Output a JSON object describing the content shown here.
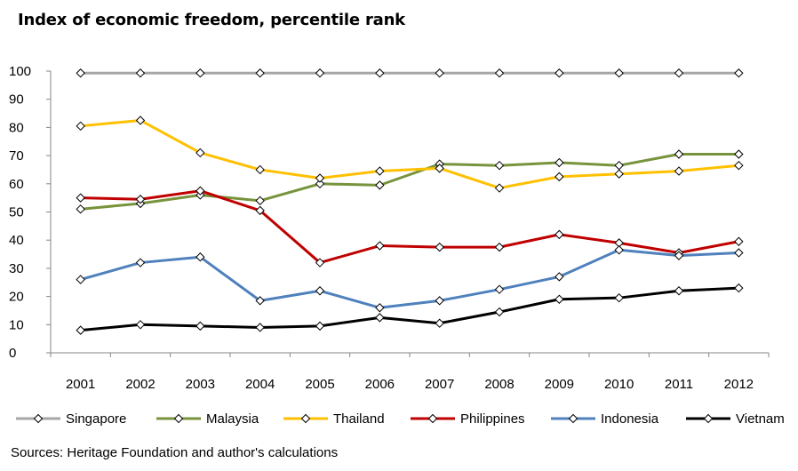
{
  "chart_data": {
    "type": "line",
    "title": "Index of economic freedom, percentile rank",
    "xlabel": "",
    "ylabel": "",
    "ylim": [
      0,
      100
    ],
    "yticks": [
      0,
      10,
      20,
      30,
      40,
      50,
      60,
      70,
      80,
      90,
      100
    ],
    "categories": [
      "2001",
      "2002",
      "2003",
      "2004",
      "2005",
      "2006",
      "2007",
      "2008",
      "2009",
      "2010",
      "2011",
      "2012"
    ],
    "series": [
      {
        "name": "Singapore",
        "color": "#a6a6a6",
        "values": [
          99.3,
          99.3,
          99.3,
          99.3,
          99.3,
          99.3,
          99.3,
          99.3,
          99.3,
          99.3,
          99.3,
          99.3
        ]
      },
      {
        "name": "Malaysia",
        "color": "#77933c",
        "values": [
          51,
          53,
          56,
          54,
          60,
          59.5,
          67,
          66.5,
          67.5,
          66.5,
          70.5,
          70.5
        ]
      },
      {
        "name": "Thailand",
        "color": "#ffc000",
        "values": [
          80.5,
          82.5,
          71,
          65,
          62,
          64.5,
          65.5,
          58.5,
          62.5,
          63.5,
          64.5,
          66.5
        ]
      },
      {
        "name": "Philippines",
        "color": "#c00000",
        "values": [
          55,
          54.5,
          57.5,
          50.5,
          32,
          38,
          37.5,
          37.5,
          42,
          39,
          35.5,
          39.5
        ]
      },
      {
        "name": "Indonesia",
        "color": "#4f81bd",
        "values": [
          26,
          32,
          34,
          18.5,
          22,
          16,
          18.5,
          22.5,
          27,
          36.5,
          34.5,
          35.5
        ]
      },
      {
        "name": "Vietnam",
        "color": "#000000",
        "values": [
          8,
          10,
          9.5,
          9,
          9.5,
          12.5,
          10.5,
          14.5,
          19,
          19.5,
          22,
          23
        ]
      }
    ],
    "legend_position": "bottom",
    "source": "Sources: Heritage Foundation and author's calculations"
  }
}
